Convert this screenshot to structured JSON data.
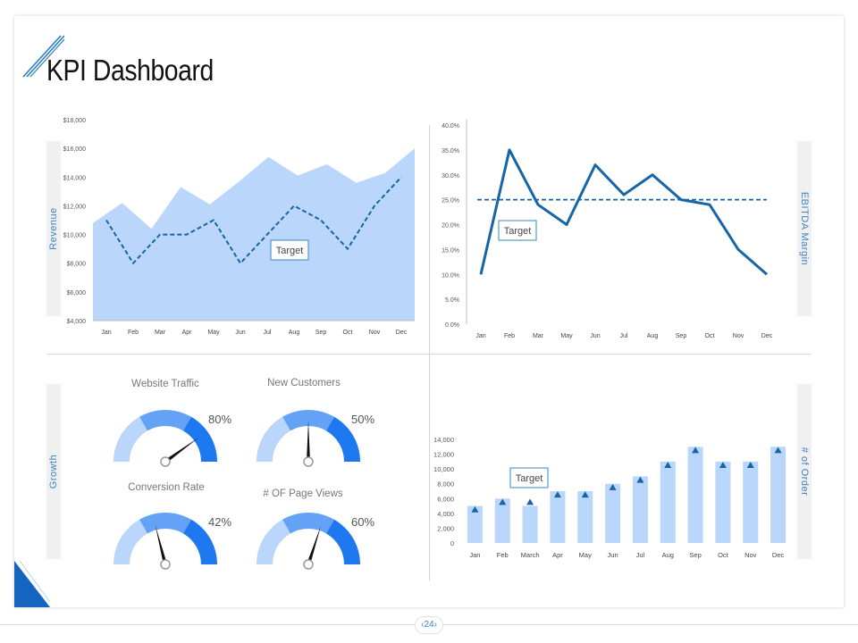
{
  "page": {
    "title": "KPI Dashboard",
    "page_number": "24"
  },
  "side_labels": {
    "revenue": "Revenue",
    "ebitda": "EBITDA Margin",
    "growth": "Growth",
    "orders": "# of Order"
  },
  "colors": {
    "accent": "#3a85c4",
    "line": "#1565a8",
    "area": "#bad6fb",
    "bar": "#bad6fb",
    "gauge_light": "#bad6fb",
    "gauge_mid": "#64a2f5",
    "gauge_dark": "#1e78f0"
  },
  "chart_data": [
    {
      "type": "area",
      "name": "revenue",
      "categories": [
        "Jan",
        "Feb",
        "Mar",
        "Apr",
        "May",
        "Jun",
        "Jul",
        "Aug",
        "Sep",
        "Oct",
        "Nov",
        "Dec"
      ],
      "series": [
        {
          "values": [
            10800,
            12200,
            10400,
            13300,
            12100,
            13700,
            15400,
            14100,
            14900,
            13600,
            14300,
            16000
          ],
          "style": "area"
        },
        {
          "values": [
            11000,
            8000,
            10000,
            10000,
            11000,
            8000,
            10000,
            12000,
            11000,
            9000,
            12000,
            14000
          ],
          "style": "dashed"
        }
      ],
      "yticks": [
        "$4,000",
        "$6,000",
        "$8,000",
        "$10,000",
        "$12,000",
        "$14,000",
        "$16,000",
        "$18,000"
      ],
      "ylim": [
        4000,
        18000
      ],
      "annotation": "Target"
    },
    {
      "type": "line",
      "name": "ebitda",
      "categories": [
        "Jan",
        "Feb",
        "Mar",
        "May",
        "Jun",
        "Jul",
        "Aug",
        "Sep",
        "Oct",
        "Nov",
        "Dec"
      ],
      "series": [
        {
          "values": [
            10,
            35,
            24,
            20,
            32,
            26,
            30,
            25,
            24,
            15,
            10
          ],
          "style": "solid"
        },
        {
          "values": [
            25,
            25,
            25,
            25,
            25,
            25,
            25,
            25,
            25,
            25,
            25
          ],
          "style": "dashed"
        }
      ],
      "yticks": [
        "0.0%",
        "5.0%",
        "10.0%",
        "15.0%",
        "20.0%",
        "25.0%",
        "30.0%",
        "35.0%",
        "40.0%"
      ],
      "ylim": [
        0,
        40
      ],
      "annotation": "Target"
    },
    {
      "type": "gauge",
      "name": "growth",
      "gauges": [
        {
          "title": "Website Traffic",
          "value": 80,
          "label": "80%"
        },
        {
          "title": "New Customers",
          "value": 50,
          "label": "50%"
        },
        {
          "title": "Conversion Rate",
          "value": 42,
          "label": "42%"
        },
        {
          "title": "# OF Page Views",
          "value": 60,
          "label": "60%"
        }
      ]
    },
    {
      "type": "bar",
      "name": "orders",
      "categories": [
        "Jan",
        "Feb",
        "March",
        "Apr",
        "May",
        "Jun",
        "Jul",
        "Aug",
        "Sep",
        "Oct",
        "Nov",
        "Dec"
      ],
      "values": [
        5000,
        6000,
        5000,
        7000,
        7000,
        8000,
        9000,
        11000,
        13000,
        11000,
        11000,
        13000
      ],
      "markers": [
        4500,
        5500,
        5500,
        6500,
        6500,
        7500,
        8500,
        10500,
        12500,
        10500,
        10500,
        12500
      ],
      "yticks": [
        "0",
        "2,000",
        "4,000",
        "6,000",
        "8,000",
        "10,000",
        "12,000",
        "14,000"
      ],
      "ylim": [
        0,
        14000
      ],
      "annotation": "Target"
    }
  ]
}
